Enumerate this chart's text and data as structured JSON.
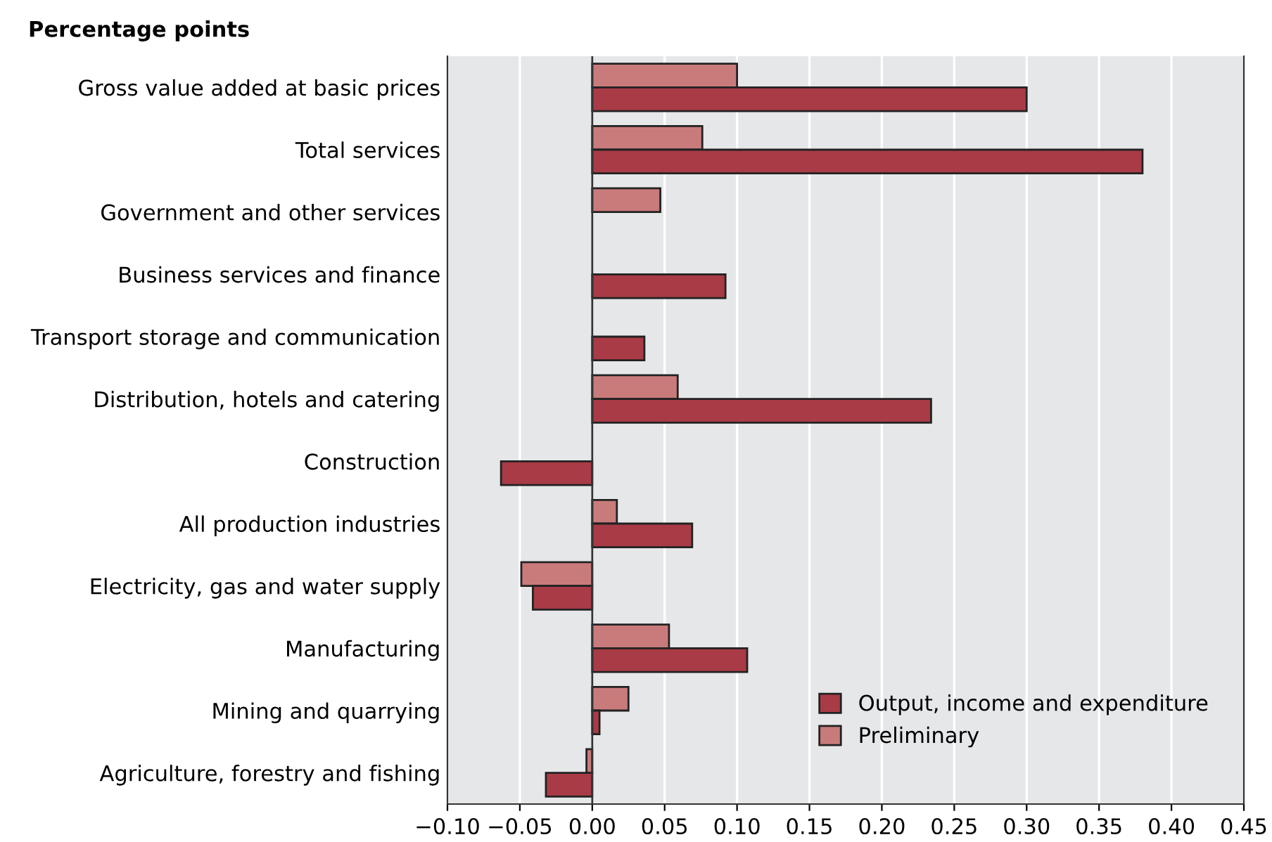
{
  "chart_data": {
    "type": "bar",
    "orientation": "horizontal",
    "title": "Percentage points",
    "categories": [
      "Gross value added at basic prices",
      "Total services",
      "Government and other services",
      "Business services and finance",
      "Transport storage and communication",
      "Distribution, hotels and catering",
      "Construction",
      "All production industries",
      "Electricity, gas and water supply",
      "Manufacturing",
      "Mining and quarrying",
      "Agriculture, forestry and fishing"
    ],
    "series": [
      {
        "name": "Preliminary",
        "color": "#c97b7b",
        "values": [
          0.1,
          0.076,
          0.047,
          null,
          null,
          0.059,
          null,
          0.017,
          -0.049,
          0.053,
          0.025,
          -0.004
        ]
      },
      {
        "name": "Output, income and expenditure",
        "color": "#a83b46",
        "values": [
          0.3,
          0.38,
          null,
          0.092,
          0.036,
          0.234,
          -0.063,
          0.069,
          -0.041,
          0.107,
          0.005,
          -0.032
        ]
      }
    ],
    "xlim": [
      -0.1,
      0.45
    ],
    "xticks": [
      {
        "value": -0.1,
        "label": "−0.10"
      },
      {
        "value": -0.05,
        "label": "−0.05"
      },
      {
        "value": 0.0,
        "label": "0.00"
      },
      {
        "value": 0.05,
        "label": "0.05"
      },
      {
        "value": 0.1,
        "label": "0.10"
      },
      {
        "value": 0.15,
        "label": "0.15"
      },
      {
        "value": 0.2,
        "label": "0.20"
      },
      {
        "value": 0.25,
        "label": "0.25"
      },
      {
        "value": 0.3,
        "label": "0.30"
      },
      {
        "value": 0.35,
        "label": "0.35"
      },
      {
        "value": 0.4,
        "label": "0.40"
      },
      {
        "value": 0.45,
        "label": "0.45"
      }
    ],
    "grid": "x",
    "legend": "bottom right"
  }
}
